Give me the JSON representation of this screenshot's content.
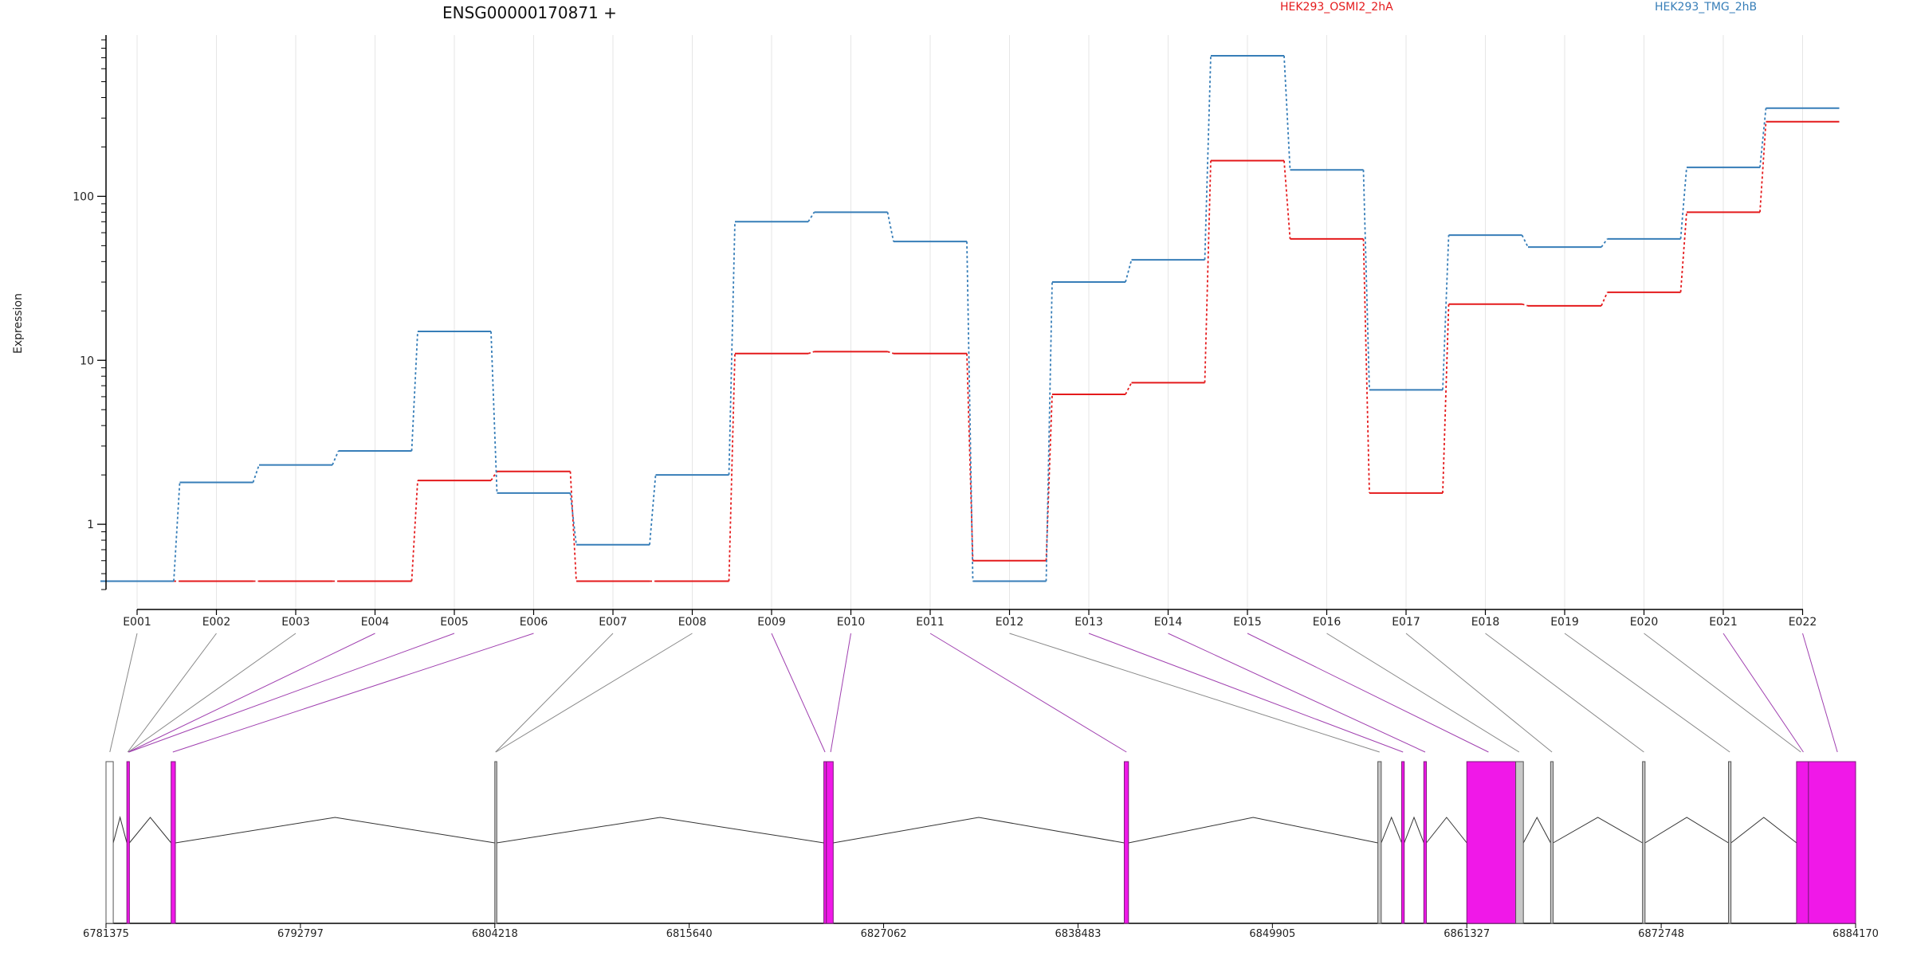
{
  "chart_data": {
    "type": "line",
    "title": "ENSG00000170871 +",
    "ylabel": "Expression",
    "yscale": "log",
    "ylim": [
      0.4,
      900
    ],
    "yticks": [
      1,
      10,
      100
    ],
    "ytick_labels": [
      "1",
      "10",
      "100"
    ],
    "grid": "vertical",
    "legend": "top",
    "categories": [
      "E001",
      "E002",
      "E003",
      "E004",
      "E005",
      "E006",
      "E007",
      "E008",
      "E009",
      "E010",
      "E011",
      "E012",
      "E013",
      "E014",
      "E015",
      "E016",
      "E017",
      "E018",
      "E019",
      "E020",
      "E021",
      "E022"
    ],
    "series": [
      {
        "name": "HEK293_OSMI2_2hA",
        "color": "#e41a1c",
        "values": [
          0.45,
          0.45,
          0.45,
          0.45,
          1.85,
          2.1,
          0.45,
          0.45,
          11,
          11.3,
          11,
          0.6,
          6.2,
          7.3,
          165,
          55,
          1.55,
          22,
          21.5,
          26,
          80,
          285
        ]
      },
      {
        "name": "HEK293_TMG_2hB",
        "color": "#377eb8",
        "values": [
          0.45,
          1.8,
          2.3,
          2.8,
          15,
          1.55,
          0.75,
          2.0,
          70,
          80,
          53,
          0.45,
          30,
          41,
          720,
          145,
          6.6,
          58,
          49,
          55,
          150,
          345
        ]
      }
    ],
    "gene_model": {
      "positions": [
        "6781375",
        "6792797",
        "6804218",
        "6815640",
        "6827062",
        "6838483",
        "6849905",
        "6861327",
        "6872748",
        "6884170"
      ],
      "range": [
        6781375,
        6884170
      ],
      "highlight_color": "#f018e8",
      "exons": [
        {
          "start": 6781375,
          "end": 6781800,
          "highlight": false
        },
        {
          "start": 6782600,
          "end": 6782750,
          "highlight": true
        },
        {
          "start": 6785200,
          "end": 6785450,
          "highlight": true
        },
        {
          "start": 6804218,
          "end": 6804320,
          "highlight": false
        },
        {
          "start": 6823550,
          "end": 6823700,
          "highlight": true
        },
        {
          "start": 6823700,
          "end": 6824100,
          "highlight": true
        },
        {
          "start": 6841200,
          "end": 6841450,
          "highlight": true
        },
        {
          "start": 6856100,
          "end": 6856300,
          "highlight": false
        },
        {
          "start": 6857500,
          "end": 6857650,
          "highlight": true
        },
        {
          "start": 6858800,
          "end": 6858950,
          "highlight": true
        },
        {
          "start": 6861327,
          "end": 6864200,
          "highlight": true
        },
        {
          "start": 6864200,
          "end": 6864650,
          "highlight": false
        },
        {
          "start": 6866250,
          "end": 6866400,
          "highlight": false
        },
        {
          "start": 6871650,
          "end": 6871800,
          "highlight": false
        },
        {
          "start": 6876700,
          "end": 6876850,
          "highlight": false
        },
        {
          "start": 6880700,
          "end": 6881400,
          "highlight": true
        },
        {
          "start": 6881400,
          "end": 6884170,
          "highlight": true
        }
      ],
      "exon_links": [
        {
          "pos": 6781600,
          "highlight": false
        },
        {
          "pos": 6782650,
          "highlight": false
        },
        {
          "pos": 6782680,
          "highlight": false
        },
        {
          "pos": 6782700,
          "highlight": true
        },
        {
          "pos": 6782720,
          "highlight": true
        },
        {
          "pos": 6785300,
          "highlight": true
        },
        {
          "pos": 6804260,
          "highlight": false
        },
        {
          "pos": 6804280,
          "highlight": false
        },
        {
          "pos": 6823620,
          "highlight": true
        },
        {
          "pos": 6823950,
          "highlight": true
        },
        {
          "pos": 6841330,
          "highlight": true
        },
        {
          "pos": 6856200,
          "highlight": false
        },
        {
          "pos": 6857580,
          "highlight": true
        },
        {
          "pos": 6858880,
          "highlight": true
        },
        {
          "pos": 6862600,
          "highlight": true
        },
        {
          "pos": 6864400,
          "highlight": false
        },
        {
          "pos": 6866330,
          "highlight": false
        },
        {
          "pos": 6871730,
          "highlight": false
        },
        {
          "pos": 6876780,
          "highlight": false
        },
        {
          "pos": 6880950,
          "highlight": false
        },
        {
          "pos": 6881100,
          "highlight": true
        },
        {
          "pos": 6883100,
          "highlight": true
        }
      ]
    }
  }
}
